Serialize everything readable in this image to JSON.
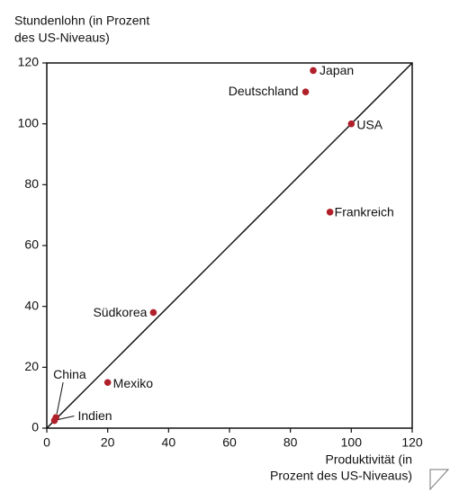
{
  "chart_data": {
    "type": "scatter",
    "y_label": [
      "Stundenlohn (in Prozent",
      "des US-Niveaus)"
    ],
    "x_label": [
      "Produktivität (in",
      "Prozent des US-Niveaus)"
    ],
    "labels": [
      "Japan",
      "Deutschland",
      "USA",
      "Frankreich",
      "Südkorea",
      "Mexiko",
      "China",
      "Indien"
    ],
    "x": [
      87.5,
      85,
      100,
      93,
      35,
      20,
      3,
      2.5
    ],
    "values": [
      117.5,
      110.5,
      100,
      71,
      38,
      15,
      3.5,
      2.5
    ],
    "color": "#b0202a",
    "xlim": [
      0,
      120
    ],
    "ylim": [
      0,
      120
    ],
    "xticks": [
      0,
      20,
      40,
      60,
      80,
      100,
      120
    ],
    "yticks": [
      0,
      20,
      40,
      60,
      80,
      100,
      120
    ]
  }
}
